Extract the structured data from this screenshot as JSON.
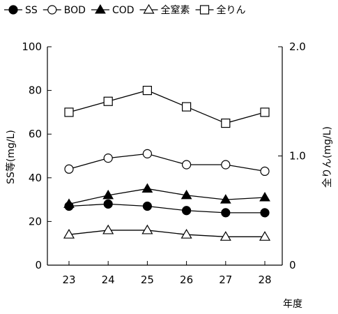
{
  "chart_data": {
    "type": "line",
    "categories": [
      "23",
      "24",
      "25",
      "26",
      "27",
      "28"
    ],
    "xlabel": "年度",
    "ylabel_left": "SS等(mg/L)",
    "ylabel_right": "全りん(mg/L)",
    "ylim_left": [
      0,
      100
    ],
    "ylim_right": [
      0,
      2.0
    ],
    "left_ticks": [
      "0",
      "20",
      "40",
      "60",
      "80",
      "100"
    ],
    "right_ticks": [
      "0",
      "1.0",
      "2.0"
    ],
    "grid": false,
    "legend_position": "top",
    "series": [
      {
        "name": "SS",
        "axis": "left",
        "marker": "filled-circle",
        "values": [
          27,
          28,
          27,
          25,
          24,
          24
        ]
      },
      {
        "name": "BOD",
        "axis": "left",
        "marker": "open-circle",
        "values": [
          44,
          49,
          51,
          46,
          46,
          43
        ]
      },
      {
        "name": "COD",
        "axis": "left",
        "marker": "filled-triangle",
        "values": [
          28,
          32,
          35,
          32,
          30,
          31
        ]
      },
      {
        "name": "全窒素",
        "axis": "left",
        "marker": "open-triangle",
        "values": [
          14,
          16,
          16,
          14,
          13,
          13
        ]
      },
      {
        "name": "全りん",
        "axis": "right",
        "marker": "open-square",
        "values": [
          1.4,
          1.5,
          1.6,
          1.45,
          1.3,
          1.4
        ]
      }
    ],
    "colors": {
      "line": "#000000",
      "fill": "#000000",
      "background": "#ffffff"
    }
  }
}
